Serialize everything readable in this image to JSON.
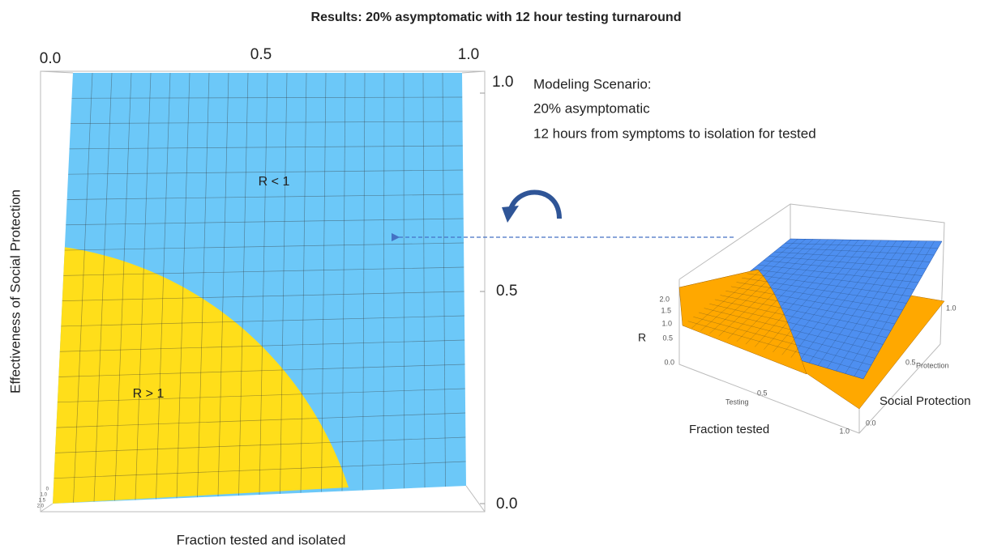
{
  "title": "Results: 20% asymptomatic with 12 hour testing turnaround",
  "main_plot": {
    "top_ticks": [
      "0.0",
      "0.5",
      "1.0"
    ],
    "right_ticks": [
      "1.0",
      "0.5",
      "0.0"
    ],
    "corner_ticks": [
      "0",
      "1.0",
      "1.5",
      "2.0"
    ],
    "x_label": "Fraction tested and isolated",
    "y_label": "Effectiveness of Social Protection",
    "region_labels": [
      "R < 1",
      "R > 1"
    ]
  },
  "scenario": {
    "heading": "Modeling Scenario:",
    "lines": [
      "20% asymptomatic",
      "12 hours from symptoms to isolation for tested"
    ]
  },
  "inset": {
    "z_label": "R",
    "z_ticks": [
      "2.0",
      "1.5",
      "1.0",
      "0.5",
      "0.0"
    ],
    "x_axis_name": "Testing",
    "x_ticks": [
      "0.5",
      "1.0"
    ],
    "y_axis_name": "Protection",
    "y_ticks": [
      "0.0",
      "0.5",
      "1.0"
    ],
    "x_label": "Fraction tested",
    "y_label": "Social Protection"
  }
}
